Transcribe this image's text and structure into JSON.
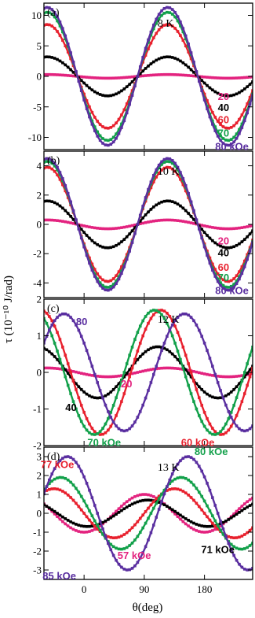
{
  "chart_data": {
    "type": "line",
    "xlabel": "θ(deg)",
    "ylabel": "τ (10⁻¹⁰ J/rad)",
    "xlim": [
      -60,
      252
    ],
    "x_ticks": [
      {
        "value": 0,
        "label": "0"
      },
      {
        "value": 90,
        "label": "90"
      },
      {
        "value": 180,
        "label": "180"
      }
    ],
    "colors": {
      "black": "#000000",
      "red": "#e8212e",
      "green": "#12a04a",
      "purple": "#5a2fa0",
      "magenta": "#e3237f"
    },
    "panels": [
      {
        "letter": "(a)",
        "temperature": "8 K",
        "ylim": [
          -12,
          12
        ],
        "y_ticks": [
          {
            "value": 10,
            "label": "10"
          },
          {
            "value": 5,
            "label": "5"
          },
          {
            "value": 0,
            "label": "0"
          },
          {
            "value": -5,
            "label": "-5"
          },
          {
            "value": -10,
            "label": "-10"
          }
        ],
        "series": [
          {
            "name": "20",
            "color": "magenta",
            "amplitude": 0.3,
            "phase": -10
          },
          {
            "name": "40",
            "color": "black",
            "amplitude": 3.2,
            "phase": -10
          },
          {
            "name": "60",
            "color": "red",
            "amplitude": 8.5,
            "phase": -10
          },
          {
            "name": "70",
            "color": "green",
            "amplitude": 10.5,
            "phase": -10
          },
          {
            "name": "80 kOe",
            "color": "purple",
            "amplitude": 11.3,
            "phase": -10
          }
        ],
        "labels": [
          {
            "text": "20",
            "color": "magenta",
            "x": 200,
            "y": -3.2
          },
          {
            "text": "40",
            "color": "black",
            "x": 200,
            "y": -5.0
          },
          {
            "text": "60",
            "color": "red",
            "x": 200,
            "y": -7.0
          },
          {
            "text": "70",
            "color": "green",
            "x": 200,
            "y": -9.2
          },
          {
            "text": "80 kOe",
            "color": "purple",
            "x": 196,
            "y": -11.4
          }
        ]
      },
      {
        "letter": "(b)",
        "temperature": "10 K",
        "ylim": [
          -5,
          5
        ],
        "y_ticks": [
          {
            "value": 4,
            "label": "4"
          },
          {
            "value": 2,
            "label": "2"
          },
          {
            "value": 0,
            "label": "0"
          },
          {
            "value": -2,
            "label": "-2"
          },
          {
            "value": -4,
            "label": "-4"
          }
        ],
        "series": [
          {
            "name": "20",
            "color": "magenta",
            "amplitude": 0.3,
            "phase": -10
          },
          {
            "name": "40",
            "color": "black",
            "amplitude": 1.6,
            "phase": -10
          },
          {
            "name": "60",
            "color": "red",
            "amplitude": 3.9,
            "phase": -10
          },
          {
            "name": "70",
            "color": "green",
            "amplitude": 4.3,
            "phase": -10
          },
          {
            "name": "80 kOe",
            "color": "purple",
            "amplitude": 4.5,
            "phase": -10
          }
        ],
        "labels": [
          {
            "text": "20",
            "color": "magenta",
            "x": 200,
            "y": -1.1
          },
          {
            "text": "40",
            "color": "black",
            "x": 200,
            "y": -1.9
          },
          {
            "text": "60",
            "color": "red",
            "x": 200,
            "y": -2.9
          },
          {
            "text": "70",
            "color": "green",
            "x": 200,
            "y": -3.6
          },
          {
            "text": "80 kOe",
            "color": "purple",
            "x": 196,
            "y": -4.5
          }
        ]
      },
      {
        "letter": "(c)",
        "temperature": "12 K",
        "ylim": [
          -2,
          2
        ],
        "y_ticks": [
          {
            "value": 2,
            "label": "2"
          },
          {
            "value": 1,
            "label": "1"
          },
          {
            "value": 0,
            "label": "0"
          },
          {
            "value": -1,
            "label": "-1"
          },
          {
            "value": -2,
            "label": "-2"
          }
        ],
        "series": [
          {
            "name": "20",
            "color": "magenta",
            "amplitude": 0.12,
            "phase": -10
          },
          {
            "name": "40",
            "color": "black",
            "amplitude": 0.7,
            "phase": -25
          },
          {
            "name": "60 kOe",
            "color": "red",
            "amplitude": 1.7,
            "phase": -20
          },
          {
            "name": "70 kOe",
            "color": "green",
            "amplitude": 1.7,
            "phase": -30
          },
          {
            "name": "80",
            "color": "purple",
            "amplitude": 1.6,
            "phase": 15
          }
        ],
        "labels": [
          {
            "text": "80",
            "color": "purple",
            "x": -12,
            "y": 1.4
          },
          {
            "text": "20",
            "color": "magenta",
            "x": 55,
            "y": -0.3
          },
          {
            "text": "40",
            "color": "black",
            "x": -28,
            "y": -0.95
          },
          {
            "text": "70 kOe",
            "color": "green",
            "x": 5,
            "y": -1.9
          },
          {
            "text": "60 kOe",
            "color": "red",
            "x": 145,
            "y": -1.9
          }
        ]
      },
      {
        "letter": "(d)",
        "temperature": "13 K",
        "ylim": [
          -3.5,
          3.5
        ],
        "y_ticks": [
          {
            "value": 3,
            "label": "3"
          },
          {
            "value": 2,
            "label": "2"
          },
          {
            "value": 1,
            "label": "1"
          },
          {
            "value": 0,
            "label": "0"
          },
          {
            "value": -1,
            "label": "-1"
          },
          {
            "value": -2,
            "label": "-2"
          },
          {
            "value": -3,
            "label": "-3"
          }
        ],
        "series": [
          {
            "name": "57 kOe",
            "color": "magenta",
            "amplitude": 1.0,
            "phase": -45
          },
          {
            "name": "71 kOe",
            "color": "black",
            "amplitude": 0.7,
            "phase": -40
          },
          {
            "name": "77 kOe",
            "color": "red",
            "amplitude": 1.3,
            "phase": 0
          },
          {
            "name": "80 kOe",
            "color": "green",
            "amplitude": 1.9,
            "phase": 10
          },
          {
            "name": "85 kOe",
            "color": "purple",
            "amplitude": 3.0,
            "phase": 20
          }
        ],
        "labels": [
          {
            "text": "77 kOe",
            "color": "red",
            "x": -65,
            "y": 2.6
          },
          {
            "text": "80 kOe",
            "color": "green",
            "x": 165,
            "y": 3.3
          },
          {
            "text": "57 kOe",
            "color": "magenta",
            "x": 50,
            "y": -2.2
          },
          {
            "text": "71 kOe",
            "color": "black",
            "x": 175,
            "y": -1.9
          },
          {
            "text": "85 kOe",
            "color": "purple",
            "x": -62,
            "y": -3.3
          }
        ]
      }
    ]
  }
}
